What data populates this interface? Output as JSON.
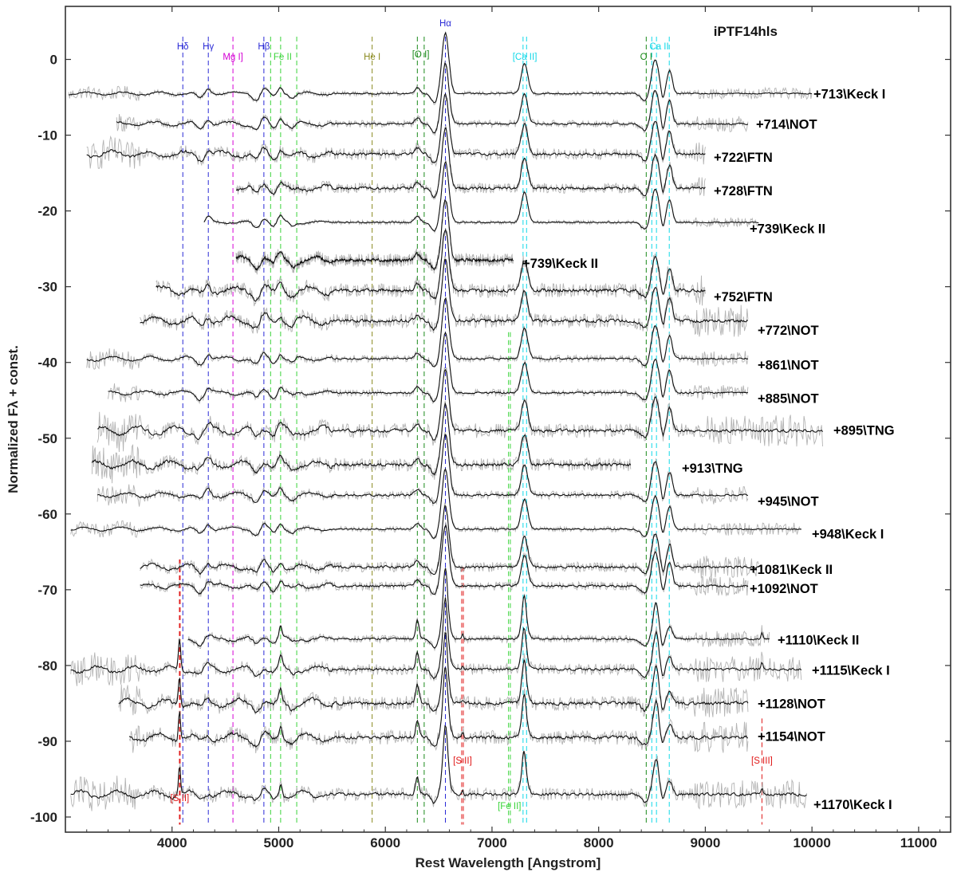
{
  "chart_data": {
    "type": "line",
    "title": "iPTF14hls",
    "xlabel": "Rest Wavelength [Angstrom]",
    "ylabel": "Normalized Fλ + const.",
    "xlim": [
      3000,
      11300
    ],
    "ylim": [
      -102,
      7
    ],
    "x_ticks": [
      4000,
      5000,
      6000,
      7000,
      8000,
      9000,
      10000,
      11000
    ],
    "x_tick_labels": [
      "4000",
      "5000",
      "6000",
      "7000",
      "8000",
      "9000",
      "10000",
      "11000"
    ],
    "y_ticks": [
      0,
      -10,
      -20,
      -30,
      -40,
      -50,
      -60,
      -70,
      -80,
      -90,
      -100
    ],
    "y_tick_labels": [
      "0",
      "-10",
      "-20",
      "-30",
      "-40",
      "-50",
      "-60",
      "-70",
      "-80",
      "-90",
      "-100"
    ],
    "grid": false,
    "legend": "none",
    "colors": {
      "smoothed": "#111111",
      "raw": "#b4b4b4"
    },
    "series": [
      {
        "name": "+713\\Keck I",
        "offset": -4.5,
        "x_range": [
          3030,
          10000
        ],
        "noise": 0.35,
        "caii_triplet": "strong"
      },
      {
        "name": "+714\\NOT",
        "offset": -8.5,
        "x_range": [
          3480,
          9400
        ],
        "noise": 0.5
      },
      {
        "name": "+722\\FTN",
        "offset": -12.5,
        "x_range": [
          3200,
          9000
        ],
        "noise": 0.8
      },
      {
        "name": "+728\\FTN",
        "offset": -17.0,
        "x_range": [
          4600,
          9000
        ],
        "noise": 0.7
      },
      {
        "name": "+739\\Keck II",
        "offset": -21.5,
        "x_range": [
          4300,
          9500
        ],
        "noise": 0.3
      },
      {
        "name": "+739\\Keck II",
        "offset": -26.5,
        "x_range": [
          4600,
          7200
        ],
        "noise": 0.9
      },
      {
        "name": "+752\\FTN",
        "offset": -30.5,
        "x_range": [
          3850,
          9000
        ],
        "noise": 1.0
      },
      {
        "name": "+772\\NOT",
        "offset": -34.5,
        "x_range": [
          3700,
          9400
        ],
        "noise": 1.0
      },
      {
        "name": "+861\\NOT",
        "offset": -39.5,
        "x_range": [
          3200,
          9400
        ],
        "noise": 0.5
      },
      {
        "name": "+885\\NOT",
        "offset": -44.0,
        "x_range": [
          3400,
          9400
        ],
        "noise": 0.5
      },
      {
        "name": "+895\\TNG",
        "offset": -49.0,
        "x_range": [
          3300,
          10100
        ],
        "noise": 1.0
      },
      {
        "name": "+913\\TNG",
        "offset": -53.5,
        "x_range": [
          3250,
          8300
        ],
        "noise": 0.9
      },
      {
        "name": "+945\\NOT",
        "offset": -57.5,
        "x_range": [
          3300,
          9400
        ],
        "noise": 0.6
      },
      {
        "name": "+948\\Keck I",
        "offset": -62.0,
        "x_range": [
          3050,
          9900
        ],
        "noise": 0.4
      },
      {
        "name": "+1081\\Keck II",
        "offset": -67.0,
        "x_range": [
          3700,
          9500
        ],
        "noise": 0.7
      },
      {
        "name": "+1092\\NOT",
        "offset": -69.5,
        "x_range": [
          3700,
          9400
        ],
        "noise": 0.6
      },
      {
        "name": "+1110\\Keck II",
        "offset": -76.5,
        "x_range": [
          4150,
          9600
        ],
        "noise": 0.5
      },
      {
        "name": "+1115\\Keck I",
        "offset": -80.5,
        "x_range": [
          3050,
          9900
        ],
        "noise": 0.8
      },
      {
        "name": "+1128\\NOT",
        "offset": -85.0,
        "x_range": [
          3500,
          9400
        ],
        "noise": 1.0
      },
      {
        "name": "+1154\\NOT",
        "offset": -89.5,
        "x_range": [
          3600,
          9400
        ],
        "noise": 1.0
      },
      {
        "name": "+1170\\Keck I",
        "offset": -97.0,
        "x_range": [
          3050,
          9950
        ],
        "noise": 0.9
      }
    ],
    "line_groups": [
      {
        "label": "Hδ",
        "color": "#2a2ad6",
        "wavelengths": [
          4101
        ],
        "label_pos": "top"
      },
      {
        "label": "Hγ",
        "color": "#2a2ad6",
        "wavelengths": [
          4340
        ],
        "label_pos": "top"
      },
      {
        "label": "Mg I]",
        "color": "#d400d4",
        "wavelengths": [
          4571
        ],
        "label_pos": "top"
      },
      {
        "label": "Hβ",
        "color": "#2a2ad6",
        "wavelengths": [
          4861
        ],
        "label_pos": "top"
      },
      {
        "label": "Fe II",
        "color": "#3ad43a",
        "wavelengths": [
          4924,
          5018,
          5169
        ],
        "label_pos": "top"
      },
      {
        "label": "He I",
        "color": "#8a8a20",
        "wavelengths": [
          5876
        ],
        "label_pos": "top"
      },
      {
        "label": "[O I]",
        "color": "#1a8a1a",
        "wavelengths": [
          6300,
          6364
        ],
        "label_pos": "top"
      },
      {
        "label": "Hα",
        "color": "#2a2ad6",
        "wavelengths": [
          6563
        ],
        "label_pos": "top"
      },
      {
        "label": "[Ca II]",
        "color": "#10d8e8",
        "wavelengths": [
          7291,
          7324
        ],
        "label_pos": "top"
      },
      {
        "label": "O I",
        "color": "#1a8a1a",
        "wavelengths": [
          8446
        ],
        "label_pos": "top"
      },
      {
        "label": "Ca II",
        "color": "#10d8e8",
        "wavelengths": [
          8498,
          8542,
          8662
        ],
        "label_pos": "top"
      },
      {
        "label": "[S II]",
        "color": "#e01818",
        "wavelengths": [
          4069,
          4076
        ],
        "label_pos": "bottom"
      },
      {
        "label": "[S II]",
        "color": "#e01818",
        "wavelengths": [
          6716,
          6731
        ],
        "label_pos": "middle"
      },
      {
        "label": "[Fe II]",
        "color": "#3ad43a",
        "wavelengths": [
          7155,
          7172
        ],
        "label_pos": "bottom"
      },
      {
        "label": "[S III]",
        "color": "#e01818",
        "wavelengths": [
          9531
        ],
        "label_pos": "middle"
      }
    ]
  }
}
